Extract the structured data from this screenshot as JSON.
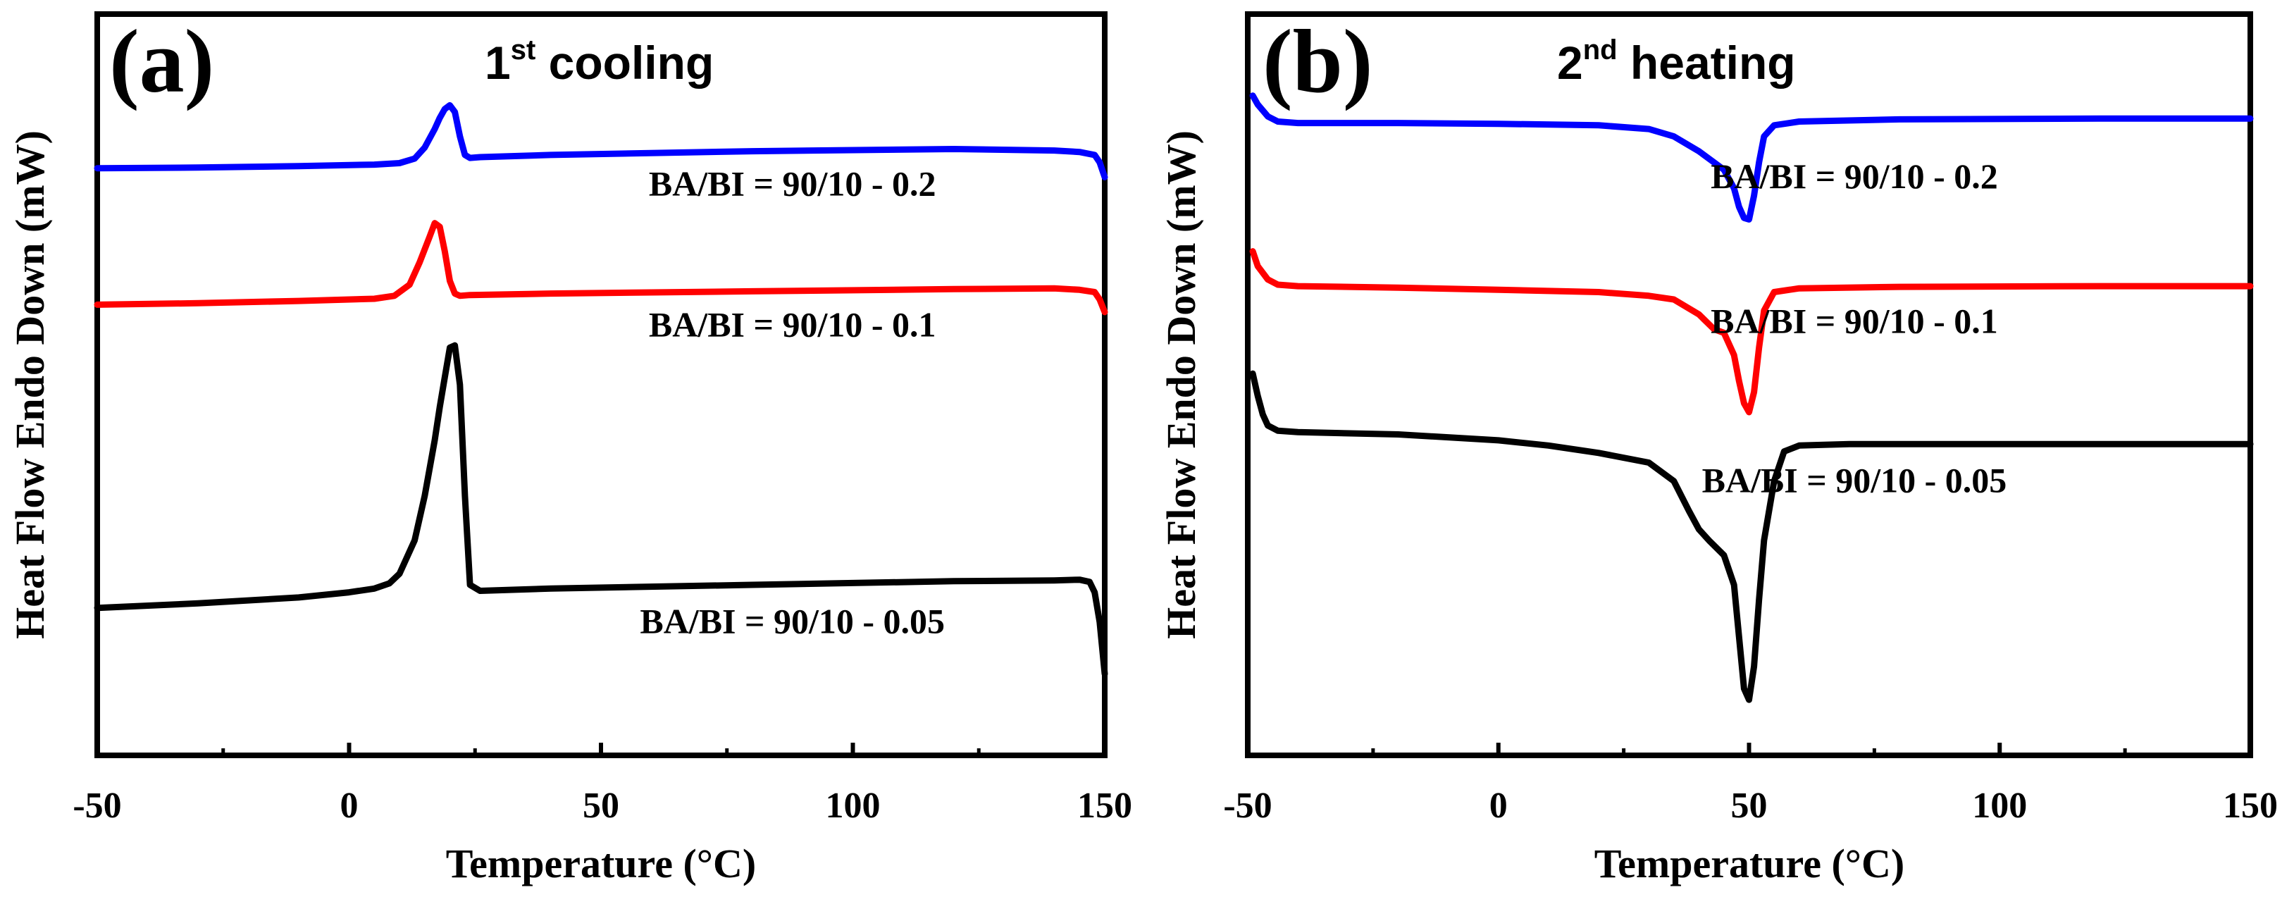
{
  "chart_data": [
    {
      "type": "line",
      "panel_label": "(a)",
      "title": {
        "main": "1",
        "sup": "st",
        "rest": " cooling"
      },
      "xlabel": "Temperature (°C)",
      "ylabel": "Heat Flow Endo Down (mW)",
      "xlim": [
        -50,
        150
      ],
      "ylim": [
        0,
        100
      ],
      "xticks": [
        -50,
        0,
        50,
        100,
        150
      ],
      "xtick_labels": [
        "-50",
        "0",
        "50",
        "100",
        "150"
      ],
      "yticks_shown": false,
      "series": [
        {
          "name": "BA/BI = 90/10 - 0.2",
          "color": "#0000ff",
          "x": [
            -50,
            -30,
            -10,
            5,
            10,
            13,
            15,
            17,
            18,
            19,
            20,
            21,
            22,
            23,
            24,
            26,
            40,
            80,
            120,
            140,
            145,
            148,
            149,
            150
          ],
          "y": [
            79.2,
            79.3,
            79.5,
            79.7,
            79.9,
            80.5,
            82.0,
            84.5,
            86.0,
            87.2,
            87.7,
            86.8,
            83.5,
            81.0,
            80.6,
            80.7,
            81.0,
            81.5,
            81.8,
            81.6,
            81.4,
            81.0,
            80.0,
            78.0
          ]
        },
        {
          "name": "BA/BI = 90/10 - 0.1",
          "color": "#ff0000",
          "x": [
            -50,
            -30,
            -10,
            5,
            9,
            12,
            14,
            16,
            17,
            18,
            19,
            20,
            21,
            22,
            24,
            40,
            80,
            120,
            140,
            145,
            148,
            149,
            150
          ],
          "y": [
            60.8,
            61.0,
            61.3,
            61.6,
            62.0,
            63.5,
            66.5,
            70.0,
            71.8,
            71.3,
            68.0,
            64.0,
            62.3,
            62.0,
            62.1,
            62.3,
            62.6,
            62.9,
            63.0,
            62.8,
            62.5,
            61.5,
            59.8
          ]
        },
        {
          "name": "BA/BI = 90/10 - 0.05",
          "color": "#000000",
          "x": [
            -50,
            -30,
            -10,
            0,
            5,
            8,
            10,
            13,
            15,
            17,
            18,
            19,
            20,
            21,
            22,
            23,
            24,
            26,
            40,
            80,
            120,
            140,
            145,
            147,
            148,
            149,
            150
          ],
          "y": [
            19.9,
            20.5,
            21.3,
            22.0,
            22.5,
            23.2,
            24.5,
            29.0,
            35.0,
            42.5,
            47.0,
            51.0,
            55.0,
            55.3,
            50.0,
            35.0,
            23.0,
            22.2,
            22.5,
            23.0,
            23.5,
            23.6,
            23.7,
            23.4,
            22.0,
            18.0,
            11.0
          ]
        }
      ],
      "annotations": [
        {
          "text": "BA/BI = 90/10 - 0.2",
          "x": 88,
          "y": 75.5
        },
        {
          "text": "BA/BI = 90/10 - 0.1",
          "x": 88,
          "y": 56.5
        },
        {
          "text": "BA/BI = 90/10 - 0.05",
          "x": 88,
          "y": 16.5
        }
      ]
    },
    {
      "type": "line",
      "panel_label": "(b)",
      "title": {
        "main": "2",
        "sup": "nd",
        "rest": " heating"
      },
      "xlabel": "Temperature (°C)",
      "ylabel": "Heat Flow Endo Down (mW)",
      "xlim": [
        -50,
        150
      ],
      "ylim": [
        0,
        100
      ],
      "xticks": [
        -50,
        0,
        50,
        100,
        150
      ],
      "xtick_labels": [
        "-50",
        "0",
        "50",
        "100",
        "150"
      ],
      "yticks_shown": false,
      "series": [
        {
          "name": "BA/BI = 90/10 - 0.2",
          "color": "#0000ff",
          "x": [
            -49,
            -48,
            -46,
            -44,
            -40,
            -20,
            0,
            20,
            30,
            35,
            40,
            43,
            45,
            47,
            48,
            49,
            50,
            51,
            52,
            53,
            55,
            60,
            80,
            120,
            150
          ],
          "y": [
            89.0,
            87.8,
            86.2,
            85.5,
            85.3,
            85.3,
            85.2,
            85.0,
            84.5,
            83.5,
            81.5,
            80.0,
            79.0,
            76.5,
            74.0,
            72.5,
            72.3,
            75.5,
            80.0,
            83.5,
            85.0,
            85.5,
            85.8,
            85.9,
            85.9
          ]
        },
        {
          "name": "BA/BI = 90/10 - 0.1",
          "color": "#ff0000",
          "x": [
            -49,
            -48,
            -46,
            -44,
            -40,
            -20,
            0,
            20,
            30,
            35,
            40,
            43,
            45,
            47,
            48,
            49,
            50,
            51,
            52,
            53,
            55,
            60,
            80,
            120,
            150
          ],
          "y": [
            68.0,
            66.0,
            64.2,
            63.5,
            63.3,
            63.1,
            62.8,
            62.5,
            62.0,
            61.5,
            59.5,
            57.5,
            57.0,
            54.0,
            50.5,
            47.5,
            46.3,
            49.0,
            55.0,
            60.0,
            62.5,
            63.0,
            63.2,
            63.3,
            63.3
          ]
        },
        {
          "name": "BA/BI = 90/10 - 0.05",
          "color": "#000000",
          "x": [
            -49,
            -48,
            -47,
            -46,
            -44,
            -40,
            -20,
            0,
            10,
            20,
            30,
            35,
            38,
            40,
            42,
            45,
            47,
            48,
            49,
            50,
            51,
            52,
            53,
            55,
            57,
            60,
            70,
            100,
            150
          ],
          "y": [
            51.5,
            48.5,
            46.0,
            44.5,
            43.8,
            43.6,
            43.3,
            42.5,
            41.8,
            40.8,
            39.5,
            37.0,
            33.0,
            30.5,
            29.0,
            27.0,
            23.0,
            16.0,
            9.0,
            7.5,
            12.0,
            21.0,
            29.0,
            37.0,
            41.0,
            41.8,
            42.0,
            42.0,
            42.0
          ]
        }
      ],
      "annotations": [
        {
          "text": "BA/BI = 90/10 - 0.2",
          "x": 71,
          "y": 76.5
        },
        {
          "text": "BA/BI = 90/10 - 0.1",
          "x": 71,
          "y": 57.0
        },
        {
          "text": "BA/BI = 90/10 - 0.05",
          "x": 71,
          "y": 35.5
        }
      ]
    }
  ]
}
